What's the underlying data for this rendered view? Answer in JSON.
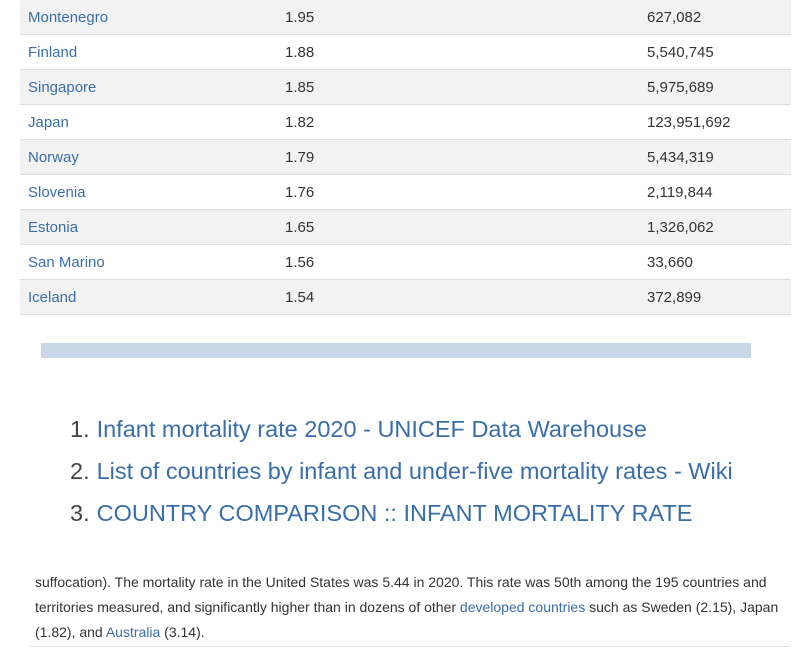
{
  "table": {
    "rows": [
      {
        "country": "Montenegro",
        "rate": "1.95",
        "population": "627,082"
      },
      {
        "country": "Finland",
        "rate": "1.88",
        "population": "5,540,745"
      },
      {
        "country": "Singapore",
        "rate": "1.85",
        "population": "5,975,689"
      },
      {
        "country": "Japan",
        "rate": "1.82",
        "population": "123,951,692"
      },
      {
        "country": "Norway",
        "rate": "1.79",
        "population": "5,434,319"
      },
      {
        "country": "Slovenia",
        "rate": "1.76",
        "population": "2,119,844"
      },
      {
        "country": "Estonia",
        "rate": "1.65",
        "population": "1,326,062"
      },
      {
        "country": "San Marino",
        "rate": "1.56",
        "population": "33,660"
      },
      {
        "country": "Iceland",
        "rate": "1.54",
        "population": "372,899"
      }
    ]
  },
  "sources": [
    {
      "number": "1.",
      "label": "Infant mortality rate 2020 - UNICEF Data Warehouse"
    },
    {
      "number": "2.",
      "label": "List of countries by infant and under-five mortality rates - Wiki"
    },
    {
      "number": "3.",
      "label": "COUNTRY COMPARISON :: INFANT MORTALITY RATE"
    }
  ],
  "paragraph": {
    "text_1": "suffocation). The mortality rate in the United States was 5.44 in 2020. This rate was 50th among the 195 countries and territories measured, and significantly higher than in dozens of other ",
    "link_developed": "developed countries",
    "text_2": " such as Sweden (2.15), Japan (1.82), and ",
    "link_australia": "Australia",
    "text_3": " (3.14)."
  },
  "colors": {
    "link": "#3a6ea8",
    "row_stripe": "#f2f2f2",
    "divider_bar": "#c9d7e7"
  }
}
